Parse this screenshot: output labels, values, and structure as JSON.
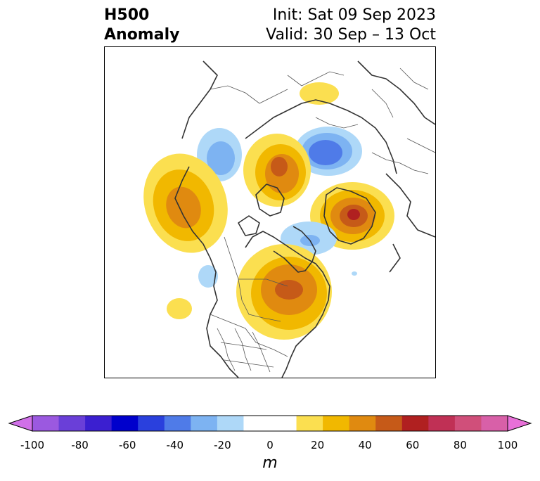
{
  "header": {
    "title_line1": "H500",
    "title_line2": "Anomaly",
    "init_label": "Init: Sat 09 Sep 2023",
    "valid_label": "Valid: 30 Sep – 13 Oct"
  },
  "map": {
    "projection": "polar stereographic (North America / Arctic)",
    "features": [
      "coastlines",
      "country-borders",
      "state-provinces"
    ],
    "anomaly_centers": [
      {
        "region": "Siberia / Arctic (north of Russia)",
        "sign": "negative",
        "peak_m": -40
      },
      {
        "region": "Western Canada / Alaska",
        "sign": "positive",
        "peak_m": 40
      },
      {
        "region": "Arctic Ocean north of Alaska",
        "sign": "positive",
        "peak_m": 50
      },
      {
        "region": "Greenland",
        "sign": "positive",
        "peak_m": 60
      },
      {
        "region": "Eastern Canada / Great Lakes",
        "sign": "positive",
        "peak_m": 50
      },
      {
        "region": "Hudson Bay area",
        "sign": "negative",
        "peak_m": -20
      }
    ]
  },
  "colorbar": {
    "unit": "m",
    "ticks": [
      "-100",
      "-80",
      "-60",
      "-40",
      "-20",
      "0",
      "20",
      "40",
      "60",
      "80",
      "100"
    ],
    "extend": "both",
    "colors": [
      "#9b59e0",
      "#6a3fd8",
      "#3b1fd0",
      "#0000cc",
      "#2a40dd",
      "#4f7be8",
      "#7db3f2",
      "#aed8f8",
      "#ffffff",
      "#ffffff",
      "#fbdf50",
      "#f1b800",
      "#e08a10",
      "#c65a18",
      "#b02020",
      "#c03055",
      "#d04f7a",
      "#d860a8"
    ],
    "min_color": "#d070e8",
    "max_color": "#e870d8"
  }
}
